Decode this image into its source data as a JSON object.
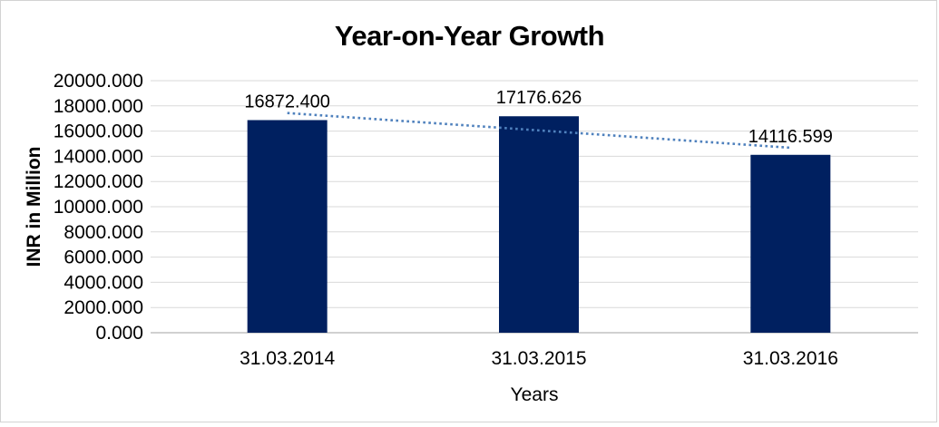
{
  "frame": {
    "background": "#ffffff",
    "border_color": "#d3d3d3"
  },
  "chart_data": {
    "type": "bar",
    "title": "Year-on-Year Growth",
    "xlabel": "Years",
    "ylabel": "INR in Million",
    "categories": [
      "31.03.2014",
      "31.03.2015",
      "31.03.2016"
    ],
    "values": [
      16872.4,
      17176.626,
      14116.599
    ],
    "data_labels": [
      "16872.400",
      "17176.626",
      "14116.599"
    ],
    "ylim": [
      0,
      20000
    ],
    "ytick_step": 2000,
    "ytick_labels": [
      "20000.000",
      "18000.000",
      "16000.000",
      "14000.000",
      "12000.000",
      "10000.000",
      "8000.000",
      "6000.000",
      "4000.000",
      "2000.000",
      "0.000"
    ],
    "grid": true,
    "legend": "none",
    "bar_color": "#002060",
    "trendline": {
      "type": "linear",
      "style": "dotted",
      "color": "#4f81bd"
    },
    "gridline_color": "#d9d9d9",
    "axis_line_color": "#c0c0c0",
    "text_color": "#000000"
  }
}
